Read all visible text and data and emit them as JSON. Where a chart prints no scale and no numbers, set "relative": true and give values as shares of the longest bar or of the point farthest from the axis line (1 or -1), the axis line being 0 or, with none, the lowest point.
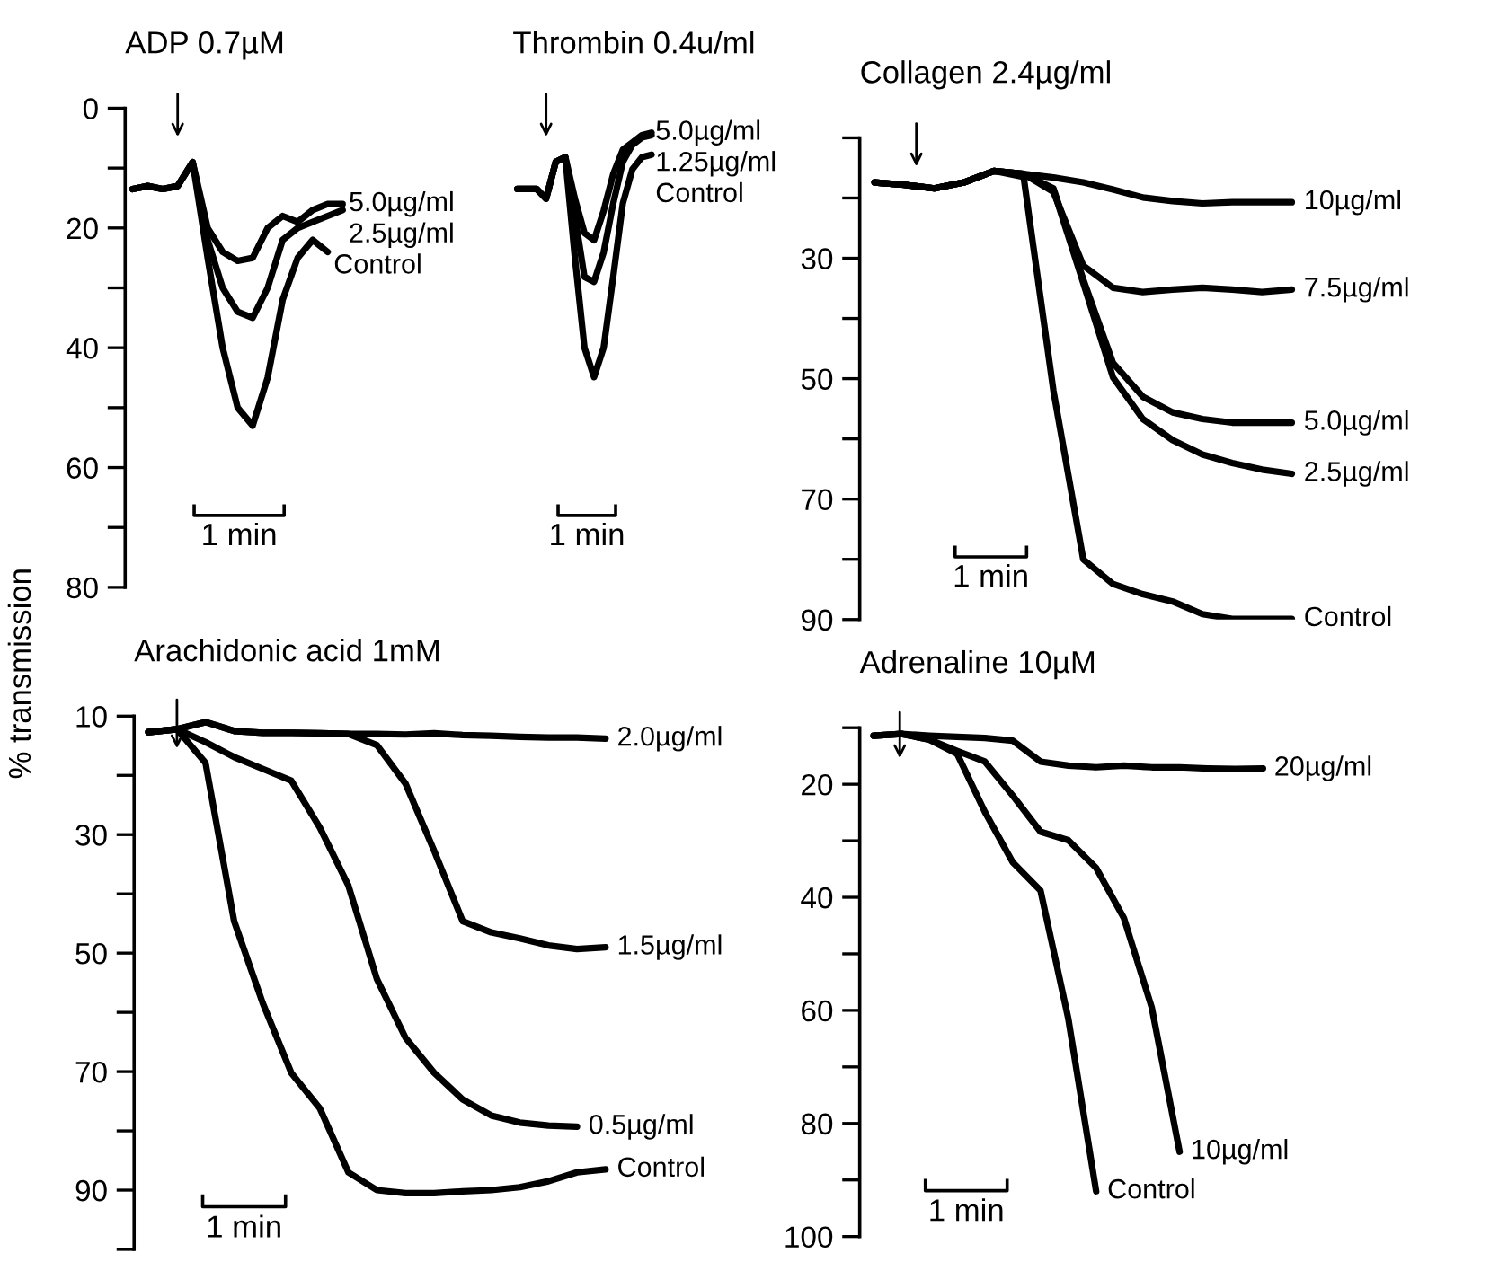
{
  "chart_data": [
    {
      "type": "line",
      "title": "ADP 0.7µM",
      "categories": [
        null,
        null,
        null,
        null,
        null,
        null,
        null,
        null,
        null,
        null,
        null,
        null,
        null,
        null,
        null
      ],
      "series": [
        {
          "name": "5.0µg/ml",
          "color": "#000000",
          "values": [
            13.5,
            13,
            13.5,
            13,
            9,
            20,
            24,
            25.5,
            25,
            20,
            18,
            19,
            17,
            16,
            16
          ]
        },
        {
          "name": "2.5µg/ml",
          "color": "#000000",
          "values": [
            13.5,
            13,
            13.5,
            13,
            9,
            22,
            30,
            34,
            35,
            30,
            22,
            20,
            19,
            18,
            17
          ]
        },
        {
          "name": "Control",
          "color": "#000000",
          "values": [
            13.5,
            13,
            13.5,
            13,
            9,
            25,
            40,
            50,
            53,
            45,
            32,
            25,
            22,
            24,
            null
          ]
        }
      ],
      "ylim": [
        80,
        0
      ],
      "yticks": [
        0,
        {
          "value": 10,
          "label": null
        },
        20,
        {
          "value": 30,
          "label": null
        },
        40,
        {
          "value": 50,
          "label": null
        },
        60,
        {
          "value": 70,
          "label": null
        },
        80
      ],
      "annotations": [
        "1 min"
      ],
      "grid": false,
      "marker": "none",
      "line_style": "solid"
    },
    {
      "type": "line",
      "title": "Thrombin 0.4u/ml",
      "relative": true,
      "categories": [
        null,
        null,
        null,
        null,
        null,
        null,
        null,
        null,
        null,
        null,
        null,
        null,
        null,
        null,
        null
      ],
      "series": [
        {
          "name": "5.0µg/ml",
          "color": "#000000",
          "values": [
            0.77,
            0.77,
            0.77,
            0.73,
            0.88,
            0.9,
            0.73,
            0.59,
            0.56,
            0.68,
            0.83,
            0.93,
            0.96,
            0.99,
            1
          ]
        },
        {
          "name": "1.25µg/ml",
          "color": "#000000",
          "values": [
            0.77,
            0.77,
            0.77,
            0.73,
            0.88,
            0.9,
            0.66,
            0.41,
            0.39,
            0.51,
            0.71,
            0.88,
            0.95,
            0.98,
            0.99
          ]
        },
        {
          "name": "Control",
          "color": "#000000",
          "values": [
            0.77,
            0.77,
            0.77,
            0.73,
            0.88,
            0.9,
            0.49,
            0.12,
            0,
            0.12,
            0.41,
            0.71,
            0.85,
            0.9,
            0.91
          ]
        }
      ],
      "annotations": [
        "1 min"
      ],
      "grid": false,
      "marker": "none",
      "line_style": "solid"
    },
    {
      "type": "line",
      "title": "Collagen 2.4µg/ml",
      "categories": [
        null,
        null,
        null,
        null,
        null,
        null,
        null,
        null,
        null,
        null,
        null,
        null,
        null,
        null,
        null
      ],
      "series": [
        {
          "name": "10µg/ml",
          "color": "#000000",
          "values": [
            17.4,
            17.8,
            18.4,
            17.4,
            15.5,
            16.0,
            16.6,
            17.4,
            18.6,
            19.9,
            20.5,
            20.9,
            20.7,
            20.7,
            20.7
          ]
        },
        {
          "name": "7.5µg/ml",
          "color": "#000000",
          "values": [
            17.4,
            17.8,
            18.4,
            17.4,
            15.5,
            16.0,
            19.0,
            31.2,
            34.9,
            35.6,
            35.2,
            34.9,
            35.2,
            35.6,
            35.2
          ]
        },
        {
          "name": "5.0µg/ml",
          "color": "#000000",
          "values": [
            17.4,
            17.8,
            18.4,
            17.4,
            15.5,
            16.0,
            18.4,
            33.5,
            47.4,
            53.0,
            55.6,
            56.7,
            57.3,
            57.3,
            57.3
          ]
        },
        {
          "name": "2.5µg/ml",
          "color": "#000000",
          "values": [
            17.4,
            17.8,
            18.4,
            17.4,
            15.5,
            16.0,
            18.6,
            34.1,
            49.8,
            56.7,
            60.2,
            62.6,
            64.0,
            65.1,
            65.8
          ]
        },
        {
          "name": "Control",
          "color": "#000000",
          "values": [
            17.4,
            17.8,
            18.4,
            17.4,
            15.5,
            16.5,
            52,
            80,
            84.1,
            85.8,
            87,
            89.1,
            89.9,
            89.9,
            89.9
          ]
        }
      ],
      "ylim": [
        90,
        10
      ],
      "yticks": [
        {
          "value": 10,
          "label": null
        },
        {
          "value": 20,
          "label": null
        },
        30,
        {
          "value": 40,
          "label": null
        },
        50,
        {
          "value": 60,
          "label": null
        },
        70,
        {
          "value": 80,
          "label": null
        },
        90
      ],
      "annotations": [
        "1 min"
      ],
      "grid": false,
      "marker": "none",
      "line_style": "solid"
    },
    {
      "type": "line",
      "title": "Arachidonic acid 1mM",
      "ylabel": "% transmission",
      "categories": [
        null,
        null,
        null,
        null,
        null,
        null,
        null,
        null,
        null,
        null,
        null,
        null,
        null,
        null,
        null,
        null,
        null
      ],
      "series": [
        {
          "name": "2.0µg/ml",
          "color": "#000000",
          "values": [
            12.7,
            12.2,
            11.0,
            12.5,
            12.8,
            12.8,
            12.9,
            13.0,
            13.0,
            13.1,
            12.9,
            13.2,
            13.3,
            13.5,
            13.6,
            13.6,
            13.8
          ]
        },
        {
          "name": "1.5µg/ml",
          "color": "#000000",
          "values": [
            12.7,
            12.2,
            11.0,
            12.5,
            12.8,
            12.8,
            12.9,
            13.0,
            14.9,
            21.4,
            32.7,
            44.6,
            46.5,
            47.5,
            48.7,
            49.3,
            49.0
          ]
        },
        {
          "name": "0.5µg/ml",
          "color": "#000000",
          "values": [
            12.7,
            12.2,
            14.4,
            16.9,
            18.9,
            20.9,
            28.8,
            38.6,
            54.4,
            64.3,
            70.2,
            74.7,
            77.4,
            78.6,
            79.1,
            79.3,
            null
          ]
        },
        {
          "name": "Control",
          "color": "#000000",
          "values": [
            12.7,
            12.2,
            17.9,
            44.6,
            58.4,
            70.2,
            76.2,
            87.0,
            90.0,
            90.5,
            90.5,
            90.2,
            90.0,
            89.5,
            88.5,
            87.0,
            86.5
          ]
        }
      ],
      "ylim": [
        100,
        10
      ],
      "yticks": [
        10,
        {
          "value": 20,
          "label": null
        },
        30,
        {
          "value": 40,
          "label": null
        },
        50,
        {
          "value": 60,
          "label": null
        },
        70,
        {
          "value": 80,
          "label": null
        },
        90,
        {
          "value": 100,
          "label": null
        }
      ],
      "annotations": [
        "1 min"
      ],
      "grid": false,
      "marker": "none",
      "line_style": "solid"
    },
    {
      "type": "line",
      "title": "Adrenaline 10µM",
      "categories": [
        null,
        null,
        null,
        null,
        null,
        null,
        null,
        null,
        null,
        null,
        null,
        null,
        null,
        null,
        null
      ],
      "series": [
        {
          "name": "20µg/ml",
          "color": "#000000",
          "values": [
            11.4,
            11.1,
            11.4,
            11.6,
            11.8,
            12.3,
            16.0,
            16.7,
            17.0,
            16.7,
            17.0,
            17.0,
            17.2,
            17.3,
            17.2
          ]
        },
        {
          "name": "10µg/ml",
          "color": "#000000",
          "values": [
            11.4,
            11.1,
            12.1,
            14.1,
            16.0,
            22.0,
            28.4,
            29.9,
            34.8,
            43.7,
            59.5,
            85,
            null,
            null,
            null
          ]
        },
        {
          "name": "Control",
          "color": "#000000",
          "values": [
            11.4,
            11.1,
            12.1,
            14.6,
            24.9,
            33.8,
            38.8,
            61.5,
            92,
            null,
            null,
            null,
            null,
            null,
            null
          ]
        }
      ],
      "ylim": [
        100,
        10
      ],
      "yticks": [
        {
          "value": 10,
          "label": null
        },
        20,
        {
          "value": 30,
          "label": null
        },
        40,
        {
          "value": 50,
          "label": null
        },
        60,
        {
          "value": 70,
          "label": null
        },
        80,
        {
          "value": 90,
          "label": null
        },
        100
      ],
      "annotations": [
        "1 min"
      ],
      "grid": false,
      "marker": "none",
      "line_style": "solid"
    }
  ]
}
